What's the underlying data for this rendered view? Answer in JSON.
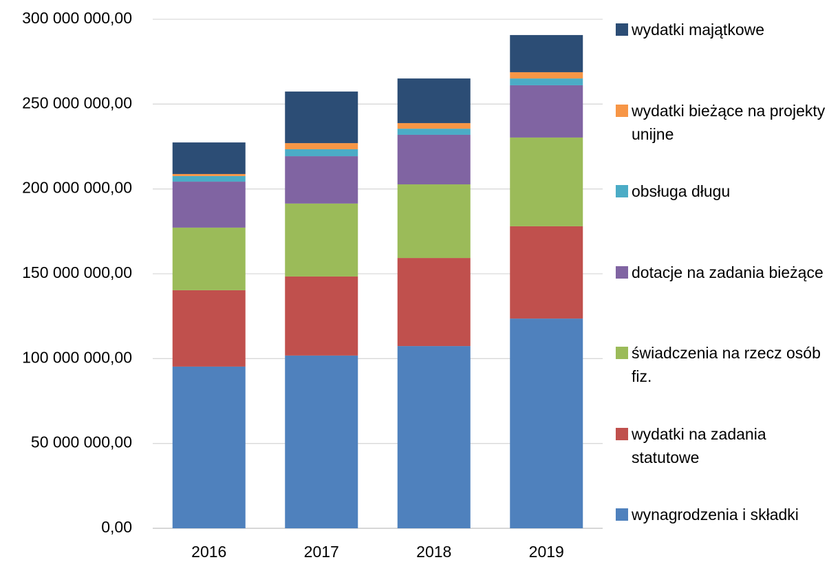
{
  "chart_data": {
    "type": "stacked_bar",
    "categories": [
      "2016",
      "2017",
      "2018",
      "2019"
    ],
    "series": [
      {
        "name": "wynagrodzenia i składki",
        "color": "#4f81bd",
        "values": [
          95300000,
          101800000,
          107400000,
          123600000
        ]
      },
      {
        "name": "wydatki na zadania statutowe",
        "color": "#c0504d",
        "values": [
          45000000,
          46600000,
          51900000,
          54400000
        ]
      },
      {
        "name": "świadczenia na rzecz osób fiz.",
        "color": "#9bbb59",
        "values": [
          36900000,
          43000000,
          43400000,
          52300000
        ]
      },
      {
        "name": "dotacje na zadania bieżące",
        "color": "#8064a2",
        "values": [
          27100000,
          27900000,
          29200000,
          30800000
        ]
      },
      {
        "name": "obsługa długu",
        "color": "#4bacc6",
        "values": [
          3300000,
          4100000,
          3600000,
          4000000
        ]
      },
      {
        "name": "wydatki bieżące na projekty unijne",
        "color": "#f79646",
        "values": [
          1200000,
          3600000,
          3300000,
          3700000
        ]
      },
      {
        "name": "wydatki majątkowe",
        "color": "#2c4d75",
        "values": [
          18600000,
          30400000,
          26300000,
          21900000
        ]
      }
    ],
    "ylim": [
      0,
      300000000
    ],
    "yticks": [
      {
        "value": 0,
        "label": "0,00"
      },
      {
        "value": 50000000,
        "label": "50 000 000,00"
      },
      {
        "value": 100000000,
        "label": "100 000 000,00"
      },
      {
        "value": 150000000,
        "label": "150 000 000,00"
      },
      {
        "value": 200000000,
        "label": "200 000 000,00"
      },
      {
        "value": 250000000,
        "label": "250 000 000,00"
      },
      {
        "value": 300000000,
        "label": "300 000 000,00"
      }
    ],
    "grid": true,
    "legend": "right"
  }
}
